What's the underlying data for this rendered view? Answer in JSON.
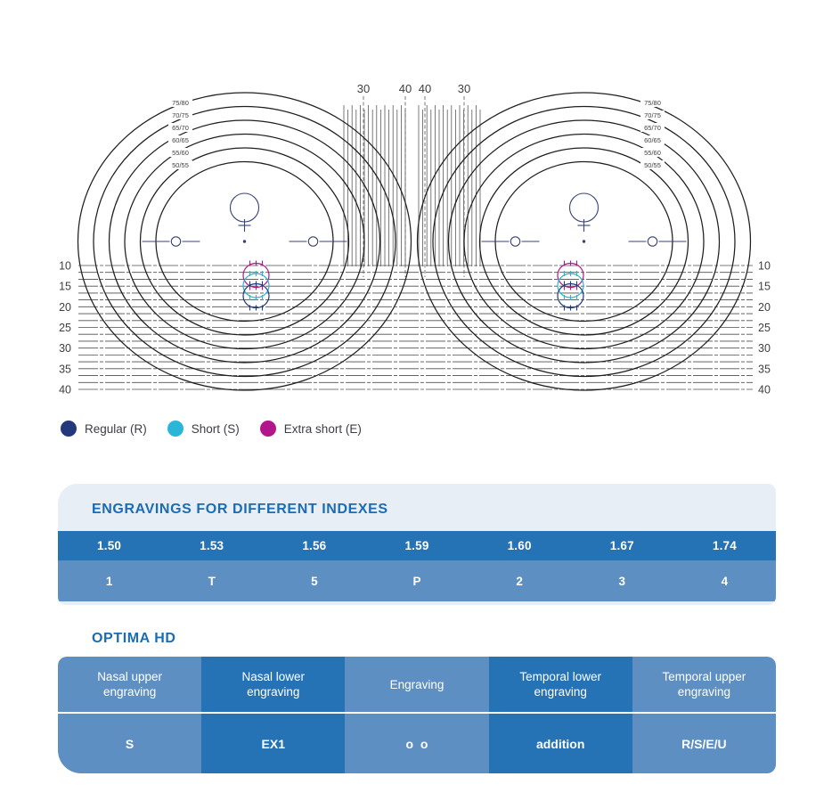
{
  "diagram": {
    "top_scale_labels": [
      "30",
      "40",
      "40",
      "30"
    ],
    "ring_labels": [
      "75/80",
      "70/75",
      "65/70",
      "60/65",
      "55/60",
      "50/55"
    ],
    "ruler_labels": [
      "10",
      "15",
      "20",
      "25",
      "30",
      "35",
      "40"
    ],
    "colors": {
      "ring_stroke": "#1f1f1f",
      "ruler_line": "#4f4f4f",
      "hatch_line": "#5a5a5a",
      "marker_navy": "#3a4376",
      "zone_regular": "#21397e",
      "zone_short": "#29b4d6",
      "zone_extra_short": "#b1178b"
    }
  },
  "legend": {
    "items": [
      {
        "label": "Regular (R)",
        "color": "#24397b"
      },
      {
        "label": "Short (S)",
        "color": "#2ab6d9"
      },
      {
        "label": "Extra short (E)",
        "color": "#b3168b"
      }
    ]
  },
  "indexes_table": {
    "title": "ENGRAVINGS FOR DIFFERENT INDEXES",
    "headers": [
      "1.50",
      "1.53",
      "1.56",
      "1.59",
      "1.60",
      "1.67",
      "1.74"
    ],
    "values": [
      "1",
      "T",
      "5",
      "P",
      "2",
      "3",
      "4"
    ],
    "accent_color": "#1b6cb3",
    "header_row_color": "#2572b4",
    "value_row_color": "#5e8fc2"
  },
  "optima_table": {
    "title": "OPTIMA HD",
    "headers": [
      "Nasal upper engraving",
      "Nasal lower engraving",
      "Engraving",
      "Temporal lower engraving",
      "Temporal upper engraving"
    ],
    "values": [
      "S",
      "EX1",
      "o  o",
      "addition",
      "R/S/E/U"
    ]
  }
}
